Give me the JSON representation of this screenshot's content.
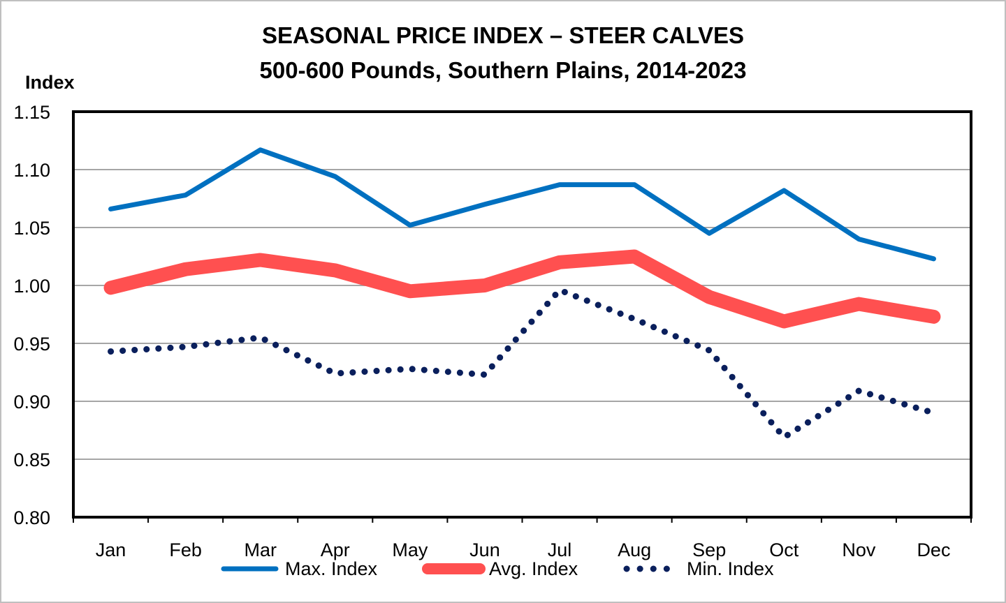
{
  "chart_data": {
    "type": "line",
    "title": "SEASONAL PRICE INDEX – STEER CALVES",
    "subtitle": "500-600 Pounds, Southern Plains, 2014-2023",
    "ylabel": "Index",
    "xlabel": "",
    "ylim": [
      0.8,
      1.15
    ],
    "yticks": [
      "0.80",
      "0.85",
      "0.90",
      "0.95",
      "1.00",
      "1.05",
      "1.10",
      "1.15"
    ],
    "categories": [
      "Jan",
      "Feb",
      "Mar",
      "Apr",
      "May",
      "Jun",
      "Jul",
      "Aug",
      "Sep",
      "Oct",
      "Nov",
      "Dec"
    ],
    "grid": true,
    "legend": "bottom",
    "series": [
      {
        "name": "Max. Index",
        "color": "#0070c0",
        "style": "solid",
        "values": [
          1.066,
          1.078,
          1.117,
          1.094,
          1.052,
          1.07,
          1.087,
          1.087,
          1.045,
          1.082,
          1.04,
          1.023
        ]
      },
      {
        "name": "Avg. Index",
        "color": "#ff5050",
        "style": "thick",
        "values": [
          0.998,
          1.014,
          1.022,
          1.013,
          0.995,
          1.0,
          1.02,
          1.025,
          0.99,
          0.969,
          0.984,
          0.973
        ]
      },
      {
        "name": "Min. Index",
        "color": "#0a1f5c",
        "style": "dotted",
        "values": [
          0.943,
          0.947,
          0.955,
          0.924,
          0.928,
          0.923,
          0.996,
          0.971,
          0.944,
          0.869,
          0.909,
          0.89
        ]
      }
    ]
  }
}
